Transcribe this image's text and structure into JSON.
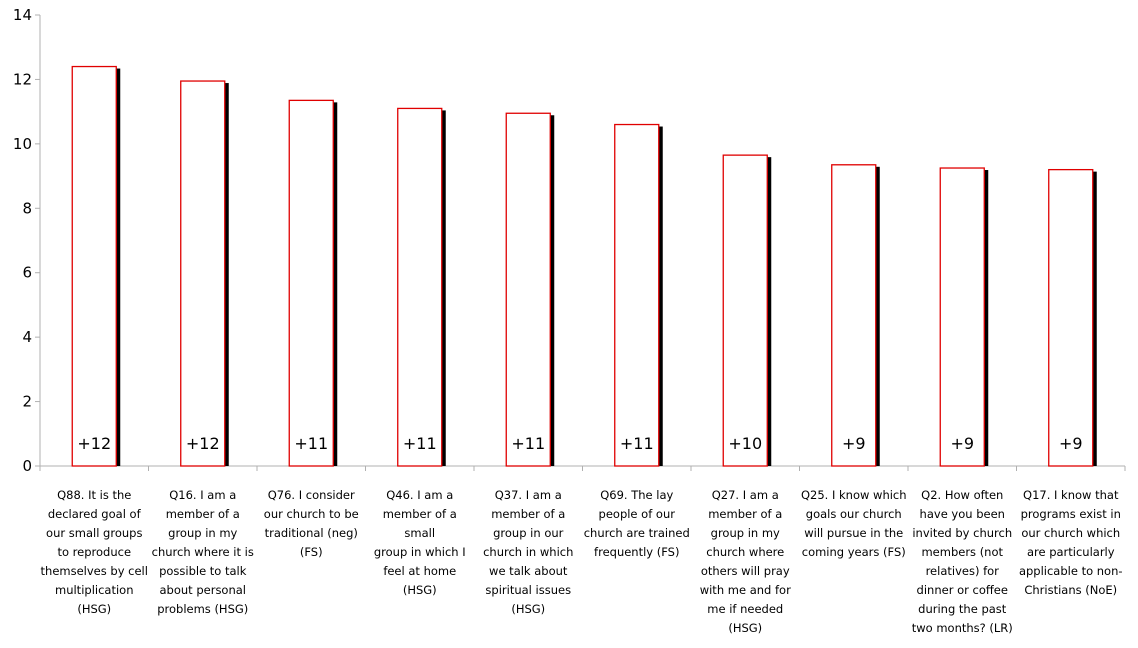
{
  "chart_data": {
    "type": "bar",
    "ylim": [
      0,
      14
    ],
    "yticks": [
      "0",
      "2",
      "4",
      "6",
      "8",
      "10",
      "12",
      "14"
    ],
    "grid": false,
    "legend": "none",
    "categories": [
      "Q88. It is the declared goal of our small groups to reproduce themselves by cell multiplication (HSG)",
      "Q16. I am a member of a group in my church where it is possible to talk about personal problems (HSG)",
      "Q76. I consider our church to be traditional (neg) (FS)",
      "Q46. I am a member of a small group in which I feel at home (HSG)",
      "Q37. I am a member of a group in our church in which we talk about spiritual issues (HSG)",
      "Q69. The lay people of our church are trained frequently (FS)",
      "Q27. I am a member of a group in my church where others will pray with me and for me if needed (HSG)",
      "Q25. I know which goals our church will pursue in the coming years (FS)",
      "Q2. How often have you been invited by church members (not relatives) for dinner or coffee during the past two months? (LR)",
      "Q17. I know that programs exist in our church which are particularly applicable to non-Christians (NoE)"
    ],
    "values": [
      12.4,
      11.95,
      11.35,
      11.1,
      10.95,
      10.6,
      9.65,
      9.35,
      9.25,
      9.2
    ],
    "data_labels": [
      "+12",
      "+12",
      "+11",
      "+11",
      "+11",
      "+11",
      "+10",
      "+9",
      "+9",
      "+9"
    ],
    "colors": {
      "bar_fill": "#ffffff",
      "bar_stroke": "#e00000",
      "bar_shadow": "#000000",
      "axis": "#b0b0b0"
    }
  },
  "category_lines": [
    [
      "Q88. It is the",
      "declared goal of",
      "our small groups",
      "to reproduce",
      "themselves by cell",
      "multiplication",
      "(HSG)"
    ],
    [
      "Q16. I am a",
      "member of a",
      "group in my",
      "church where it is",
      "possible to talk",
      "about personal",
      "problems (HSG)"
    ],
    [
      "Q76. I consider",
      "our church to be",
      "traditional (neg)",
      "(FS)"
    ],
    [
      "Q46. I am a",
      "member of a small",
      "group in which I",
      "feel at home",
      "(HSG)"
    ],
    [
      "Q37. I am a",
      "member of a",
      "group in our",
      "church in which",
      "we talk about",
      "spiritual issues",
      "(HSG)"
    ],
    [
      "Q69. The lay",
      "people of our",
      "church are trained",
      "frequently (FS)"
    ],
    [
      "Q27. I am a",
      "member of a",
      "group in my",
      "church where",
      "others will pray",
      "with me and for",
      "me if needed",
      "(HSG)"
    ],
    [
      "Q25. I know which",
      "goals our church",
      "will pursue in the",
      "coming years (FS)"
    ],
    [
      "Q2. How often",
      "have you been",
      "invited by church",
      "members (not",
      "relatives) for",
      "dinner or coffee",
      "during the past",
      "two months? (LR)"
    ],
    [
      "Q17. I know that",
      "programs exist in",
      "our church which",
      "are particularly",
      "applicable to non-",
      "Christians (NoE)"
    ]
  ]
}
